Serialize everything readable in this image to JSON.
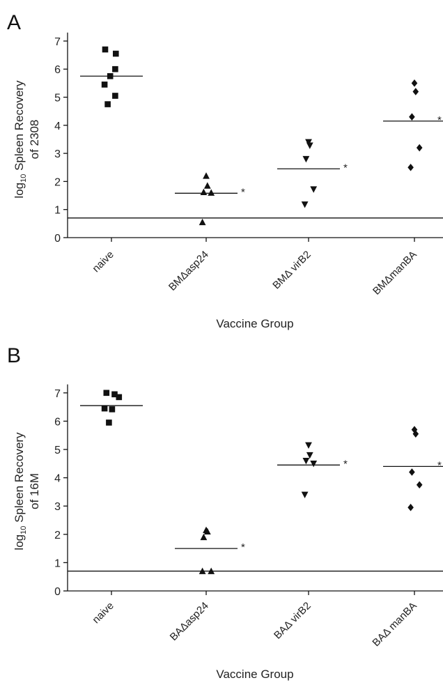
{
  "chart_data": [
    {
      "type": "scatter",
      "panel_label": "A",
      "ylabel_prefix": "log",
      "ylabel_sub": "10",
      "ylabel_rest": " Spleen Recovery",
      "ylabel_line2": "of 2308",
      "xlabel": "Vaccine Group",
      "ylim": [
        0,
        7.3
      ],
      "yticks": [
        "0",
        "1",
        "2",
        "3",
        "4",
        "5",
        "6",
        "7"
      ],
      "limit_of_detection": 0.7,
      "groups": [
        {
          "label": "naive",
          "marker": "square",
          "values": [
            6.7,
            6.55,
            6.0,
            5.75,
            5.45,
            5.05,
            4.75
          ],
          "mean": 5.75,
          "significance": ""
        },
        {
          "label": "BMΔasp24",
          "marker": "triangle-up",
          "values": [
            2.2,
            1.85,
            1.62,
            1.6,
            0.55
          ],
          "mean": 1.58,
          "significance": "*"
        },
        {
          "label": "BMΔ virB2",
          "marker": "triangle-down",
          "values": [
            3.4,
            3.28,
            2.8,
            1.72,
            1.18
          ],
          "mean": 2.45,
          "significance": "*"
        },
        {
          "label": "BMΔmanBA",
          "marker": "diamond",
          "values": [
            5.5,
            5.2,
            4.3,
            3.2,
            2.5
          ],
          "mean": 4.15,
          "significance": "*"
        }
      ]
    },
    {
      "type": "scatter",
      "panel_label": "B",
      "ylabel_prefix": "log",
      "ylabel_sub": "10",
      "ylabel_rest": " Spleen Recovery",
      "ylabel_line2": "of 16M",
      "xlabel": "Vaccine Group",
      "ylim": [
        0,
        7.3
      ],
      "yticks": [
        "0",
        "1",
        "2",
        "3",
        "4",
        "5",
        "6",
        "7"
      ],
      "limit_of_detection": 0.7,
      "groups": [
        {
          "label": "naive",
          "marker": "square",
          "values": [
            7.0,
            6.95,
            6.85,
            6.45,
            6.42,
            5.95
          ],
          "mean": 6.55,
          "significance": ""
        },
        {
          "label": "BAΔasp24",
          "marker": "triangle-up",
          "values": [
            2.15,
            2.1,
            1.9,
            0.7,
            0.7
          ],
          "mean": 1.5,
          "significance": "*"
        },
        {
          "label": "BAΔ virB2",
          "marker": "triangle-down",
          "values": [
            5.15,
            4.8,
            4.6,
            4.5,
            3.4
          ],
          "mean": 4.45,
          "significance": "*"
        },
        {
          "label": "BAΔ manBA",
          "marker": "diamond",
          "values": [
            5.7,
            5.55,
            4.2,
            3.75,
            2.95
          ],
          "mean": 4.4,
          "significance": "*"
        }
      ]
    }
  ]
}
